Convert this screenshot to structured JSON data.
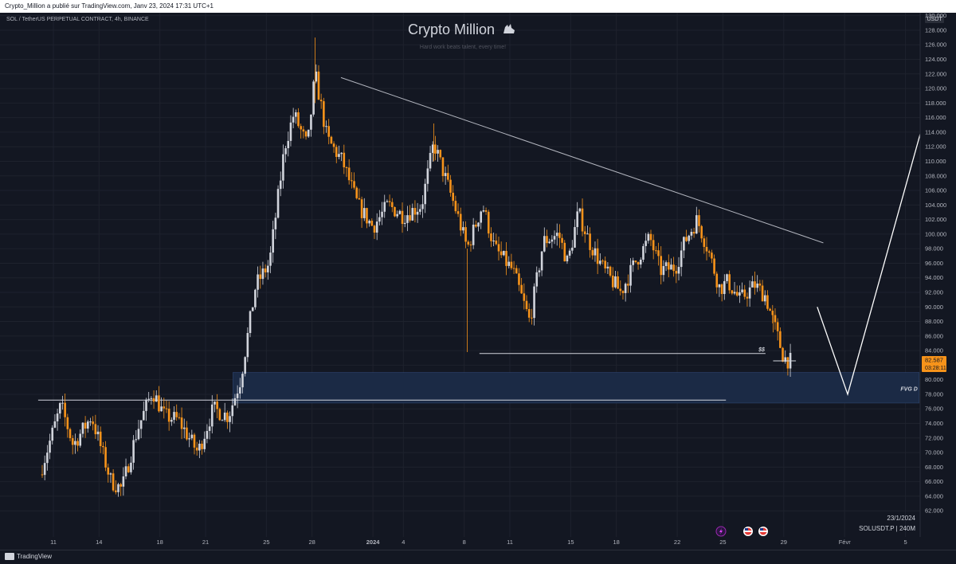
{
  "header": {
    "published_line": "Crypto_Million a publié sur TradingView.com, Janv 23, 2024 17:31 UTC+1"
  },
  "chart_header": {
    "symbol_line": "SOL / TetherUS PERPETUAL CONTRACT, 4h, BINANCE"
  },
  "watermark": {
    "title": "Crypto Million",
    "subtitle": "Hard work beats talent, every time!"
  },
  "chart_data": {
    "type": "candlestick",
    "currency_label": "USDT",
    "ylim": [
      60.5,
      131.5
    ],
    "y_ticks": [
      "62.000",
      "64.000",
      "66.000",
      "68.000",
      "70.000",
      "72.000",
      "74.000",
      "76.000",
      "78.000",
      "80.000",
      "82.000",
      "84.000",
      "86.000",
      "88.000",
      "90.000",
      "92.000",
      "94.000",
      "96.000",
      "98.000",
      "100.000",
      "102.000",
      "104.000",
      "106.000",
      "108.000",
      "110.000",
      "112.000",
      "114.000",
      "116.000",
      "118.000",
      "120.000",
      "122.000",
      "124.000",
      "126.000",
      "128.000",
      "130.000"
    ],
    "x_ticks": [
      "11",
      "14",
      "18",
      "21",
      "25",
      "28",
      "2024",
      "4",
      "8",
      "11",
      "15",
      "18",
      "22",
      "25",
      "29",
      "Févr",
      "5"
    ],
    "price_path": [
      {
        "d": -0.9,
        "p": 67.0
      },
      {
        "d": 0.5,
        "p": 76.5
      },
      {
        "d": 1.3,
        "p": 71.0
      },
      {
        "d": 2.5,
        "p": 75.0
      },
      {
        "d": 3.8,
        "p": 66.0
      },
      {
        "d": 4.5,
        "p": 65.0
      },
      {
        "d": 5.5,
        "p": 73.0
      },
      {
        "d": 6.5,
        "p": 78.5
      },
      {
        "d": 7.3,
        "p": 75.0
      },
      {
        "d": 8.2,
        "p": 74.5
      },
      {
        "d": 9.5,
        "p": 70.0
      },
      {
        "d": 10.5,
        "p": 76.0
      },
      {
        "d": 11.5,
        "p": 75.0
      },
      {
        "d": 12.3,
        "p": 80.0
      },
      {
        "d": 13.3,
        "p": 93.0
      },
      {
        "d": 14.2,
        "p": 96.0
      },
      {
        "d": 15.2,
        "p": 112.0
      },
      {
        "d": 15.8,
        "p": 116.5
      },
      {
        "d": 16.7,
        "p": 112.0
      },
      {
        "d": 17.2,
        "p": 122.0
      },
      {
        "d": 18.0,
        "p": 113.0
      },
      {
        "d": 19.0,
        "p": 110.0
      },
      {
        "d": 20.0,
        "p": 104.0
      },
      {
        "d": 21.0,
        "p": 101.0
      },
      {
        "d": 22.0,
        "p": 104.0
      },
      {
        "d": 23.0,
        "p": 102.5
      },
      {
        "d": 24.2,
        "p": 104.0
      },
      {
        "d": 25.0,
        "p": 112.5
      },
      {
        "d": 26.5,
        "p": 103.0
      },
      {
        "d": 27.2,
        "p": 98.0
      },
      {
        "d": 28.2,
        "p": 104.0
      },
      {
        "d": 29.0,
        "p": 98.0
      },
      {
        "d": 30.2,
        "p": 95.0
      },
      {
        "d": 31.3,
        "p": 88.0
      },
      {
        "d": 32.2,
        "p": 99.0
      },
      {
        "d": 33.2,
        "p": 100.0
      },
      {
        "d": 33.8,
        "p": 96.0
      },
      {
        "d": 34.5,
        "p": 103.0
      },
      {
        "d": 35.2,
        "p": 99.0
      },
      {
        "d": 36.2,
        "p": 95.0
      },
      {
        "d": 37.3,
        "p": 92.0
      },
      {
        "d": 38.2,
        "p": 96.0
      },
      {
        "d": 39.2,
        "p": 99.5
      },
      {
        "d": 39.9,
        "p": 95.0
      },
      {
        "d": 40.9,
        "p": 95.5
      },
      {
        "d": 41.5,
        "p": 99.0
      },
      {
        "d": 42.3,
        "p": 102.0
      },
      {
        "d": 43.0,
        "p": 98.0
      },
      {
        "d": 43.8,
        "p": 92.5
      },
      {
        "d": 44.3,
        "p": 93.5
      },
      {
        "d": 45.1,
        "p": 91.0
      },
      {
        "d": 46.1,
        "p": 93.0
      },
      {
        "d": 46.8,
        "p": 91.5
      },
      {
        "d": 47.3,
        "p": 88.0
      },
      {
        "d": 48.0,
        "p": 83.0
      },
      {
        "d": 48.5,
        "p": 82.5
      }
    ],
    "levels": [
      {
        "price": 77.2,
        "start_day": -1.0,
        "end_day": 44.2,
        "label": ""
      },
      {
        "price": 83.6,
        "start_day": 28.0,
        "end_day": 46.8,
        "label": "$$"
      }
    ],
    "trendline": {
      "start": {
        "d": 18.9,
        "p": 121.5
      },
      "end": {
        "d": 50.6,
        "p": 98.8
      }
    },
    "fvg_zone": {
      "top": 81.0,
      "bottom": 76.8,
      "start_day": 11.8,
      "end_day": 56.9,
      "label": "FVG D"
    },
    "projection": [
      {
        "d": 50.2,
        "p": 90.0
      },
      {
        "d": 52.2,
        "p": 78.0
      },
      {
        "d": 58.6,
        "p": 126.0
      }
    ],
    "current_price": {
      "label": "82.587",
      "countdown": "03:28:11",
      "color": "#f7931a"
    },
    "colors": {
      "up": "#d1d4dc",
      "down": "#f7931a",
      "fvg_zone": "#1b2a45",
      "background": "#131722",
      "grid": "#1e222d"
    },
    "date_label": "23/1/2024",
    "symbol_label": "SOLUSDT.P | 240M"
  },
  "footer": {
    "brand": "TradingView"
  }
}
